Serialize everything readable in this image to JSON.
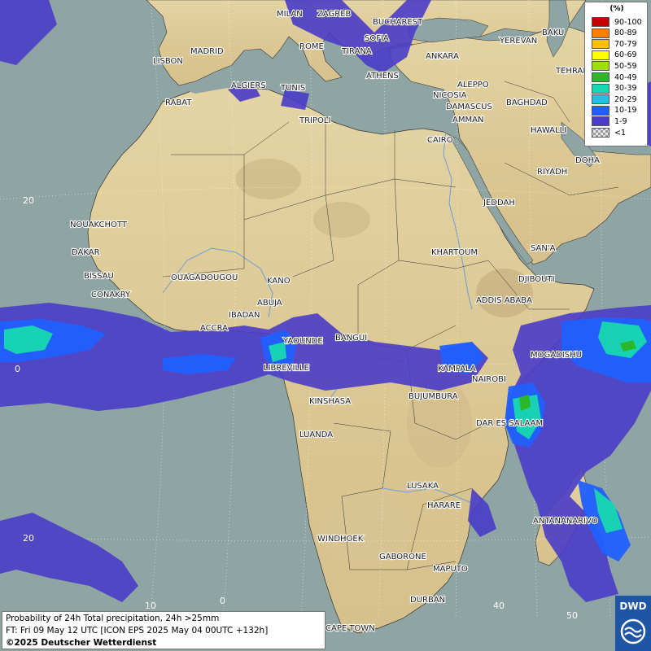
{
  "legend": {
    "title": "(%)",
    "items": [
      {
        "label": "90-100",
        "color": "#c40000"
      },
      {
        "label": "80-89",
        "color": "#ff8000"
      },
      {
        "label": "70-79",
        "color": "#ffbf00"
      },
      {
        "label": "60-69",
        "color": "#ffff00"
      },
      {
        "label": "50-59",
        "color": "#a0e000"
      },
      {
        "label": "40-49",
        "color": "#2ab82a"
      },
      {
        "label": "30-39",
        "color": "#18d8b0"
      },
      {
        "label": "20-29",
        "color": "#20c0e0"
      },
      {
        "label": "10-19",
        "color": "#2060ff"
      },
      {
        "label": "1-9",
        "color": "#4a3cc8"
      },
      {
        "label": "<1",
        "color": "checker"
      }
    ]
  },
  "info": {
    "line1": "Probability of 24h Total precipitation, 24h >25mm",
    "line2": "FT: Fri 09 May 12 UTC [ICON EPS 2025 May 04 00UTC +132h]",
    "line3": "©2025 Deutscher Wetterdienst"
  },
  "logo": {
    "text": "DWD"
  },
  "grid_labels": {
    "lat_20n": "20",
    "lat_0": "0",
    "lat_20s": "20",
    "lon_10": "10",
    "lon_0": "0",
    "lon_40": "40",
    "lon_50": "50"
  },
  "cities": {
    "milan": "MILAN",
    "zagreb": "ZAGREB",
    "bucharest": "BUCHAREST",
    "sofia": "SOFIA",
    "madrid": "MADRID",
    "rome": "ROME",
    "tirana": "TIRANA",
    "ankara": "ANKARA",
    "baku": "BAKU",
    "yerevan": "YEREVAN",
    "lisbon": "LISBON",
    "athens": "ATHENS",
    "tehran": "TEHRAN",
    "algiers": "ALGIERS",
    "tunis": "TUNIS",
    "aleppo": "ALEPPO",
    "rabat": "RABAT",
    "nicosia": "NICOSIA",
    "baghdad": "BAGHDAD",
    "damascus": "DAMASCUS",
    "amman": "AMMAN",
    "tripoli": "TRIPOLI",
    "hawalli": "HAWALLI",
    "cairo": "CAIRO",
    "doha": "DOHA",
    "riyadh": "RIYADH",
    "jeddah": "JEDDAH",
    "nouakchott": "NOUAKCHOTT",
    "dakar": "DAKAR",
    "khartoum": "KHARTOUM",
    "sanaa": "SAN'A",
    "bissau": "BISSAU",
    "ouagadougou": "OUAGADOUGOU",
    "kano": "KANO",
    "djibouti": "DJIBOUTI",
    "conakry": "CONAKRY",
    "abuja": "ABUJA",
    "addis_ababa": "ADDIS ABABA",
    "ibadan": "IBADAN",
    "accra": "ACCRA",
    "yaounde": "YAOUNDE",
    "bangui": "BANGUI",
    "mogadishu": "MOGADISHU",
    "libreville": "LIBREVILLE",
    "kampala": "KAMPALA",
    "nairobi": "NAIROBI",
    "kinshasa": "KINSHASA",
    "bujumbura": "BUJUMBURA",
    "dar_es_salaam": "DAR ES SALAAM",
    "luanda": "LUANDA",
    "lusaka": "LUSAKA",
    "harare": "HARARE",
    "antananarivo": "ANTANANARIVO",
    "windhoek": "WINDHOEK",
    "gaborone": "GABORONE",
    "maputo": "MAPUTO",
    "durban": "DURBAN",
    "cape_town": "CAPE TOWN"
  }
}
